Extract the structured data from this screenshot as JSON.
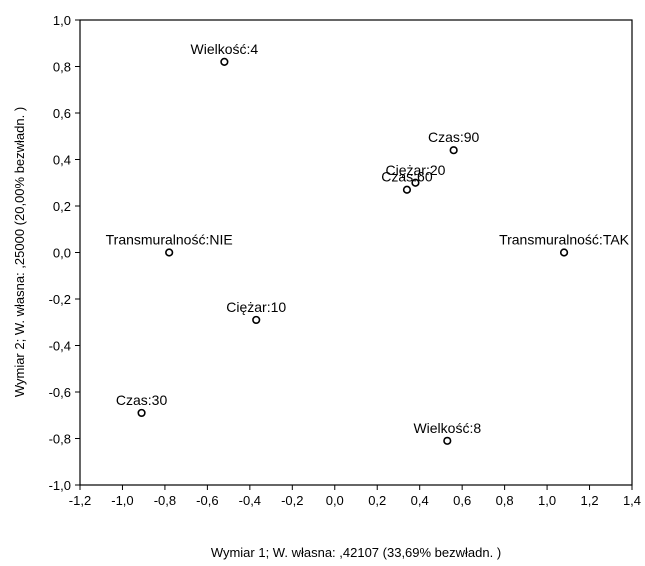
{
  "chart_data": {
    "type": "scatter",
    "title": "",
    "xlabel": "Wymiar    1; W. własna: ,42107 (33,69% bezwładn. )",
    "ylabel": "Wymiar    2; W. własna: ,25000 (20,00% bezwładn. )",
    "xlim": [
      -1.2,
      1.4
    ],
    "ylim": [
      -1.0,
      1.0
    ],
    "xticks": [
      -1.2,
      -1.0,
      -0.8,
      -0.6,
      -0.4,
      -0.2,
      0.0,
      0.2,
      0.4,
      0.6,
      0.8,
      1.0,
      1.2,
      1.4
    ],
    "xtick_labels": [
      "-1,2",
      "-1,0",
      "-0,8",
      "-0,6",
      "-0,4",
      "-0,2",
      "0,0",
      "0,2",
      "0,4",
      "0,6",
      "0,8",
      "1,0",
      "1,2",
      "1,4"
    ],
    "yticks": [
      -1.0,
      -0.8,
      -0.6,
      -0.4,
      -0.2,
      0.0,
      0.2,
      0.4,
      0.6,
      0.8,
      1.0
    ],
    "ytick_labels": [
      "-1,0",
      "-0,8",
      "-0,6",
      "-0,4",
      "-0,2",
      "0,0",
      "0,2",
      "0,4",
      "0,6",
      "0,8",
      "1,0"
    ],
    "grid": false,
    "colors": {
      "marker": "#000000",
      "axis": "#000000",
      "background": "#ffffff"
    },
    "points": [
      {
        "label": "Wielkość:4",
        "x": -0.52,
        "y": 0.82
      },
      {
        "label": "Czas:90",
        "x": 0.56,
        "y": 0.44
      },
      {
        "label": "Ciężar:20",
        "x": 0.38,
        "y": 0.3
      },
      {
        "label": "Czas:60",
        "x": 0.34,
        "y": 0.27
      },
      {
        "label": "Transmuralność:NIE",
        "x": -0.78,
        "y": 0.0
      },
      {
        "label": "Transmuralność:TAK",
        "x": 1.08,
        "y": 0.0
      },
      {
        "label": "Ciężar:10",
        "x": -0.37,
        "y": -0.29
      },
      {
        "label": "Czas:30",
        "x": -0.91,
        "y": -0.69
      },
      {
        "label": "Wielkość:8",
        "x": 0.53,
        "y": -0.81
      }
    ]
  }
}
